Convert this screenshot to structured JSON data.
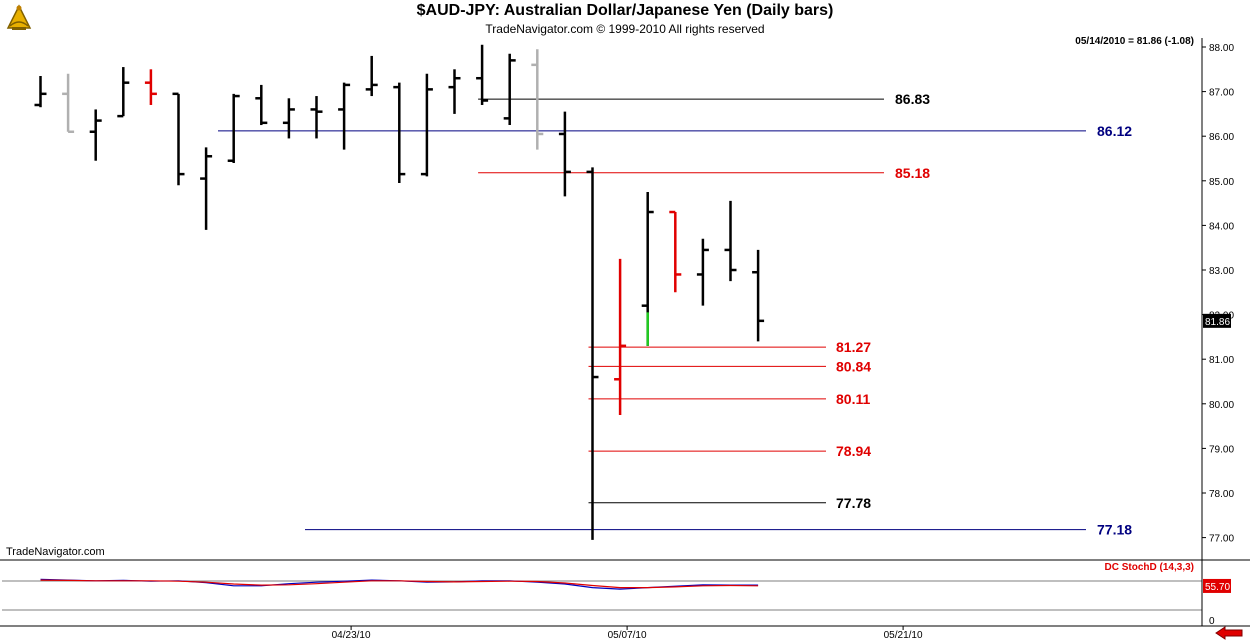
{
  "header": {
    "title": "$AUD-JPY:  Australian Dollar/Japanese Yen  (Daily bars)",
    "subtitle": "TradeNavigator.com © 1999-2010 All rights reserved",
    "quote": "05/14/2010 = 81.86 (-1.08)"
  },
  "watermark": "TradeNavigator.com",
  "colors": {
    "bar": "#000000",
    "down_bar": "#e00000",
    "inside_bar": "#b0b0b0",
    "up_bar": "#22cc22",
    "level_black": "#000000",
    "level_blue": "#000080",
    "level_red": "#e00000",
    "stoch_k": "#0000c0",
    "stoch_d": "#e00000"
  },
  "chart_data": [
    {
      "type": "bar",
      "title": "$AUD-JPY:  Australian Dollar/Japanese Yen  (Daily bars)",
      "y_ticks": [
        "88.00",
        "87.00",
        "86.00",
        "85.00",
        "84.00",
        "83.00",
        "82.00",
        "81.00",
        "80.00",
        "79.00",
        "78.00",
        "77.00"
      ],
      "ylim": [
        76.85,
        88.1
      ],
      "x_ticks": [
        {
          "label": "04/23/10",
          "index": 11
        },
        {
          "label": "05/07/10",
          "index": 21
        },
        {
          "label": "05/21/10",
          "index": 31
        }
      ],
      "last_price": {
        "value": 81.86,
        "label": "81.86"
      },
      "ohlc": [
        {
          "o": 86.7,
          "h": 87.35,
          "l": 86.65,
          "c": 86.95,
          "color": "black"
        },
        {
          "o": 86.95,
          "h": 87.4,
          "l": 86.1,
          "c": 86.1,
          "color": "gray"
        },
        {
          "o": 86.1,
          "h": 86.6,
          "l": 85.45,
          "c": 86.35,
          "color": "black"
        },
        {
          "o": 86.45,
          "h": 87.55,
          "l": 86.45,
          "c": 87.2,
          "color": "black"
        },
        {
          "o": 87.2,
          "h": 87.5,
          "l": 86.7,
          "c": 86.95,
          "color": "red"
        },
        {
          "o": 86.95,
          "h": 86.95,
          "l": 84.9,
          "c": 85.15,
          "color": "black"
        },
        {
          "o": 85.05,
          "h": 85.75,
          "l": 83.9,
          "c": 85.55,
          "color": "black"
        },
        {
          "o": 85.45,
          "h": 86.95,
          "l": 85.4,
          "c": 86.9,
          "color": "black"
        },
        {
          "o": 86.85,
          "h": 87.15,
          "l": 86.25,
          "c": 86.3,
          "color": "black"
        },
        {
          "o": 86.3,
          "h": 86.85,
          "l": 85.95,
          "c": 86.6,
          "color": "black"
        },
        {
          "o": 86.6,
          "h": 86.9,
          "l": 85.95,
          "c": 86.55,
          "color": "black"
        },
        {
          "o": 86.6,
          "h": 87.2,
          "l": 85.7,
          "c": 87.15,
          "color": "black"
        },
        {
          "o": 87.05,
          "h": 87.8,
          "l": 86.9,
          "c": 87.15,
          "color": "black"
        },
        {
          "o": 87.1,
          "h": 87.2,
          "l": 84.95,
          "c": 85.15,
          "color": "black"
        },
        {
          "o": 85.15,
          "h": 87.4,
          "l": 85.1,
          "c": 87.05,
          "color": "black"
        },
        {
          "o": 87.1,
          "h": 87.5,
          "l": 86.5,
          "c": 87.3,
          "color": "black"
        },
        {
          "o": 87.3,
          "h": 88.05,
          "l": 86.7,
          "c": 86.8,
          "color": "black"
        },
        {
          "o": 86.4,
          "h": 87.85,
          "l": 86.25,
          "c": 87.7,
          "color": "black"
        },
        {
          "o": 87.6,
          "h": 87.95,
          "l": 85.7,
          "c": 86.05,
          "color": "gray"
        },
        {
          "o": 86.05,
          "h": 86.55,
          "l": 84.65,
          "c": 85.2,
          "color": "black"
        },
        {
          "o": 85.2,
          "h": 85.3,
          "l": 76.95,
          "c": 80.6,
          "color": "black"
        },
        {
          "o": 80.55,
          "h": 83.25,
          "l": 79.75,
          "c": 81.3,
          "color": "red"
        },
        {
          "o": 82.2,
          "h": 84.75,
          "l": 81.3,
          "c": 84.3,
          "color": "black",
          "up_segment": [
            81.3,
            82.05
          ]
        },
        {
          "o": 84.3,
          "h": 84.3,
          "l": 82.5,
          "c": 82.9,
          "color": "red"
        },
        {
          "o": 82.9,
          "h": 83.7,
          "l": 82.2,
          "c": 83.45,
          "color": "black"
        },
        {
          "o": 83.45,
          "h": 84.55,
          "l": 82.75,
          "c": 83.0,
          "color": "black"
        },
        {
          "o": 82.95,
          "h": 83.45,
          "l": 81.4,
          "c": 81.86,
          "color": "black"
        }
      ],
      "levels": [
        {
          "value": 86.83,
          "label": "86.83",
          "color": "black",
          "from_index": 16
        },
        {
          "value": 86.12,
          "label": "86.12",
          "color": "blue",
          "from_index": 6
        },
        {
          "value": 85.18,
          "label": "85.18",
          "color": "red",
          "from_index": 16
        },
        {
          "value": 81.27,
          "label": "81.27",
          "color": "red",
          "from_index": 20
        },
        {
          "value": 80.84,
          "label": "80.84",
          "color": "red",
          "from_index": 20
        },
        {
          "value": 80.11,
          "label": "80.11",
          "color": "red",
          "from_index": 20
        },
        {
          "value": 78.94,
          "label": "78.94",
          "color": "red",
          "from_index": 20
        },
        {
          "value": 77.78,
          "label": "77.78",
          "color": "black",
          "from_index": 20
        },
        {
          "value": 77.18,
          "label": "77.18",
          "color": "blue",
          "from_index": 10
        }
      ]
    },
    {
      "type": "line",
      "title": "DC StochD (14,3,3)",
      "ylim": [
        0,
        100
      ],
      "y_ticks": [
        {
          "label": "75",
          "value": 75
        },
        {
          "label": "0",
          "value": 0
        }
      ],
      "last_value": {
        "value": 55.7,
        "label": "55.70"
      },
      "series": [
        {
          "key": "k",
          "values": [
            74,
            72,
            70,
            71,
            69,
            70,
            65,
            56,
            56,
            62,
            66,
            69,
            72,
            70,
            66,
            67,
            70,
            70,
            66,
            61,
            51,
            47,
            51,
            55,
            59,
            58,
            58
          ]
        },
        {
          "key": "d",
          "values": [
            72,
            71,
            70,
            70,
            70,
            69,
            66,
            61,
            58,
            59,
            62,
            66,
            70,
            70,
            68,
            67,
            68,
            69,
            68,
            64,
            57,
            51,
            51,
            53,
            56,
            57,
            56
          ]
        }
      ]
    }
  ]
}
